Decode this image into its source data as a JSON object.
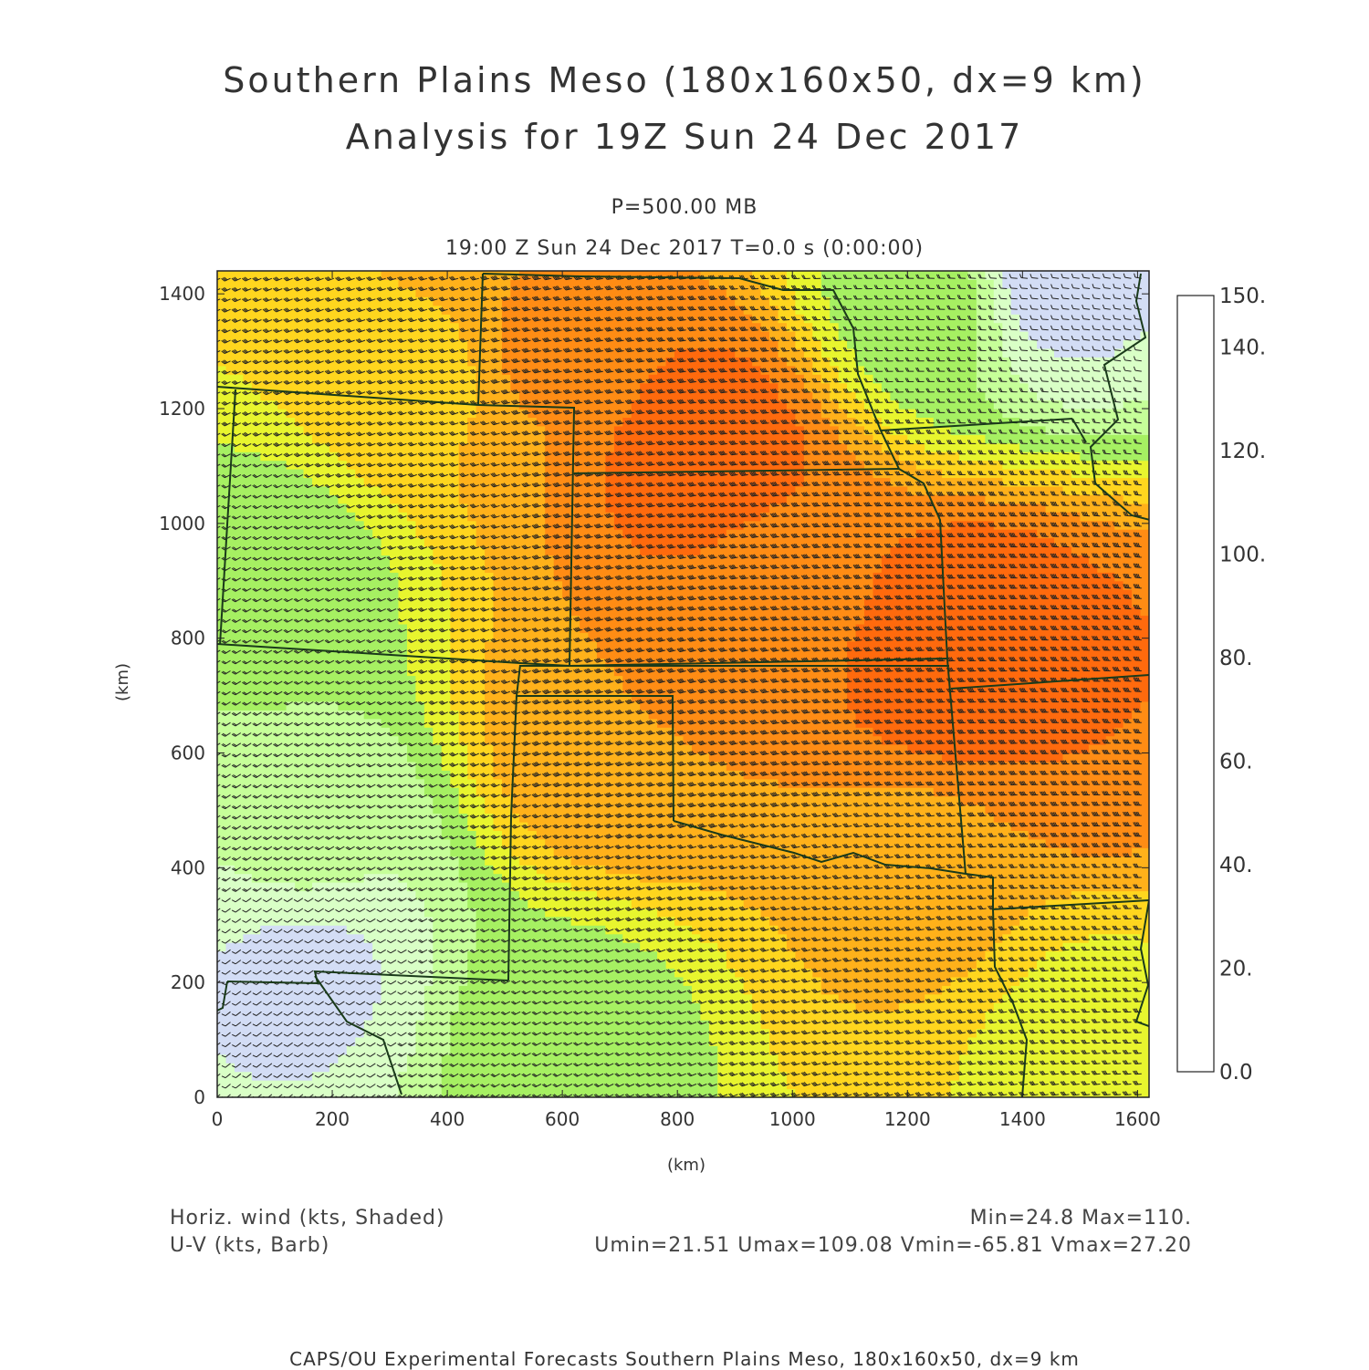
{
  "title": {
    "line1": "Southern Plains Meso (180x160x50, dx=9 km)",
    "line2": "Analysis for 19Z Sun 24 Dec 2017"
  },
  "subtitle": {
    "level": "P=500.00 MB",
    "time": "19:00 Z Sun 24 Dec 2017    T=0.0 s (0:00:00)"
  },
  "chart_data": {
    "type": "heatmap",
    "xlabel": "(km)",
    "ylabel": "(km)",
    "xlim": [
      0,
      1620
    ],
    "ylim": [
      0,
      1440
    ],
    "x_ticks": [
      "0",
      "200",
      "400",
      "600",
      "800",
      "1000",
      "1200",
      "1400",
      "1600"
    ],
    "y_ticks": [
      "0",
      "200",
      "400",
      "600",
      "800",
      "1000",
      "1200",
      "1400"
    ],
    "colorbar": {
      "levels": [
        0,
        10,
        20,
        30,
        40,
        50,
        60,
        70,
        80,
        90,
        100,
        110,
        120,
        130,
        140,
        150
      ],
      "labels": [
        "0.0",
        "20.",
        "40.",
        "60.",
        "80.",
        "100.",
        "120.",
        "140.",
        "150."
      ],
      "colors": [
        "#e6f7ff",
        "#d4ecff",
        "#d3ddf5",
        "#d9ffc6",
        "#c6ff99",
        "#a6f062",
        "#e8f52e",
        "#ffd61e",
        "#ffb11a",
        "#ff8c14",
        "#ff6a0d",
        "#ff3b0b",
        "#e0200a",
        "#c4100a",
        "#a8060a"
      ]
    },
    "wind_speed_centers": [
      {
        "x": 850,
        "y": 1120,
        "speed": 106
      },
      {
        "x": 1310,
        "y": 785,
        "speed": 110
      },
      {
        "x": 1460,
        "y": 660,
        "speed": 100
      },
      {
        "x": 980,
        "y": 900,
        "speed": 97
      },
      {
        "x": 700,
        "y": 620,
        "speed": 90
      },
      {
        "x": 560,
        "y": 1300,
        "speed": 92
      },
      {
        "x": 1240,
        "y": 350,
        "speed": 82
      },
      {
        "x": 1500,
        "y": 100,
        "speed": 66
      },
      {
        "x": 100,
        "y": 900,
        "speed": 55
      },
      {
        "x": 150,
        "y": 450,
        "speed": 42
      },
      {
        "x": 150,
        "y": 225,
        "speed": 28
      },
      {
        "x": 1440,
        "y": 1420,
        "speed": 26
      },
      {
        "x": 600,
        "y": 100,
        "speed": 55
      },
      {
        "x": 1250,
        "y": 1380,
        "speed": 55
      },
      {
        "x": 380,
        "y": 1260,
        "speed": 78
      }
    ]
  },
  "footer": {
    "field1": "Horiz. wind (kts, Shaded)",
    "field2": "U-V (kts, Barb)",
    "stats1": "Min=24.8 Max=110.",
    "stats2": "Umin=21.51 Umax=109.08 Vmin=-65.81 Vmax=27.20",
    "credit": "CAPS/OU Experimental Forecasts  Southern Plains Meso, 180x160x50, dx=9 km"
  }
}
